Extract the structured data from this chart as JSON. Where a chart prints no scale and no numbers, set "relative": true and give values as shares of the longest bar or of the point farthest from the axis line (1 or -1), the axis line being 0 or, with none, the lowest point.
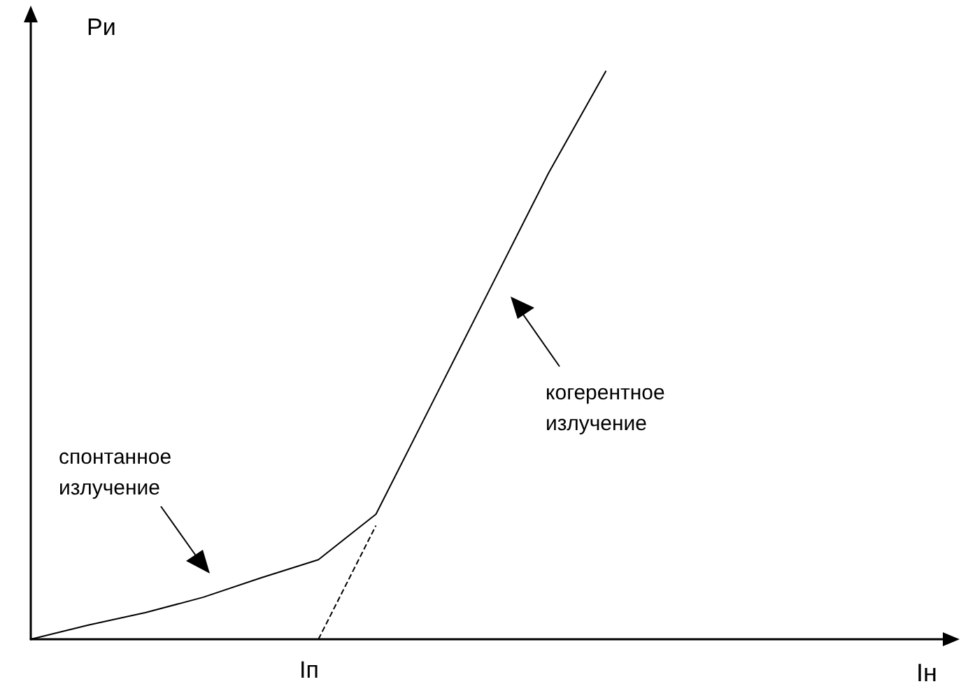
{
  "chart_data": {
    "type": "line",
    "relative": true,
    "ylabel": "Pи",
    "xlabel": "Iн",
    "categories": [
      null,
      null,
      null,
      null,
      null,
      null,
      null,
      null,
      null,
      null,
      null,
      null,
      null,
      null,
      null,
      null,
      null
    ],
    "series": [
      {
        "color": "#000000",
        "values": [
          0,
          0.025,
          0.047,
          0.074,
          0.108,
          0.14,
          0.22,
          0.42,
          0.62,
          0.82,
          1.0,
          null,
          null,
          null,
          null,
          null,
          null
        ]
      },
      {
        "color": "#000000",
        "line_style": "dashed",
        "values": [
          null,
          null,
          null,
          null,
          null,
          0,
          0.2,
          null,
          null,
          null,
          null,
          null,
          null,
          null,
          null,
          null,
          null
        ]
      }
    ],
    "annotations": [
      "спонтанное\nизлучение",
      "когерентное\nизлучение",
      "Iп"
    ],
    "marker": "none",
    "grid": false
  }
}
